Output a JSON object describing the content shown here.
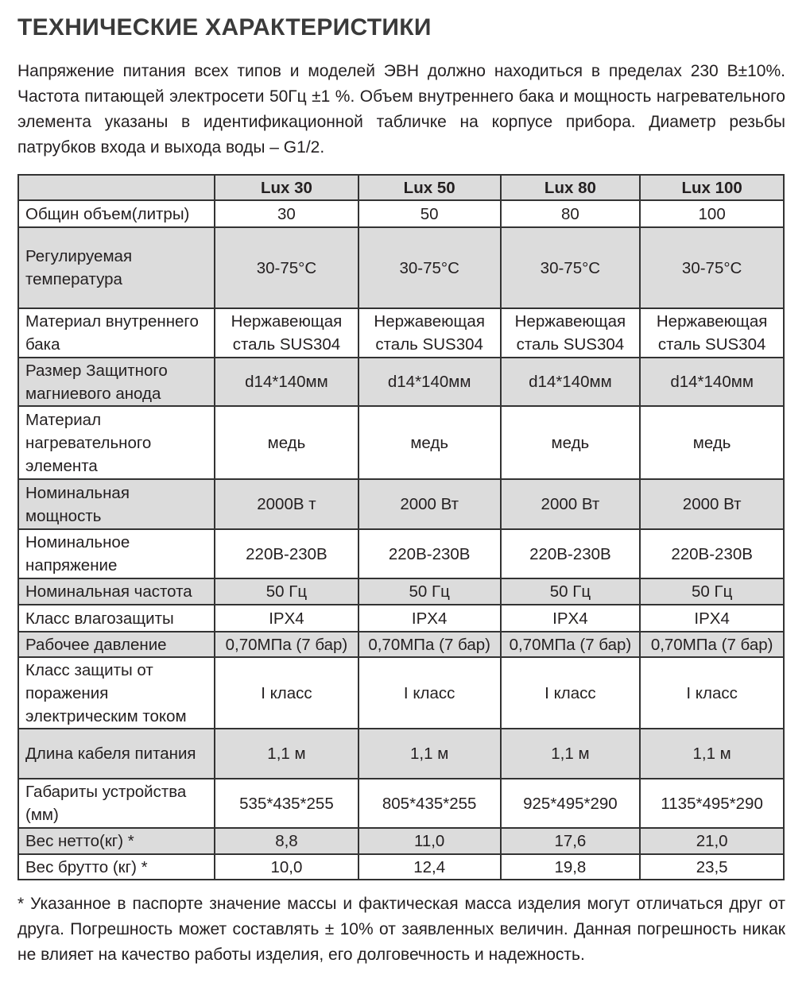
{
  "title": "ТЕХНИЧЕСКИЕ ХАРАКТЕРИСТИКИ",
  "intro": "Напряжение питания всех типов и моделей ЭВН должно находиться в пределах 230 В±10%. Частота питающей электросети 50Гц ±1 %. Объем внутреннего бака и мощность нагревательного элемента указаны в идентификационной табличке на корпусе прибора. Диаметр резьбы патрубков входа и выхода воды – G1/2.",
  "table": {
    "headers": [
      "",
      "Lux 30",
      "Lux 50",
      "Lux 80",
      "Lux 100"
    ],
    "rows": [
      {
        "label": "Общин объем(литры)",
        "values": [
          "30",
          "50",
          "80",
          "100"
        ],
        "h": 34
      },
      {
        "label": "Регулируемая температура",
        "values": [
          "30-75°C",
          "30-75°C",
          "30-75°C",
          "30-75°C"
        ],
        "h": 102
      },
      {
        "label": "Материал внутреннего бака",
        "values": [
          "Нержавеющая сталь SUS304",
          "Нержавеющая сталь SUS304",
          "Нержавеющая сталь SUS304",
          "Нержавеющая сталь SUS304"
        ],
        "h": 62
      },
      {
        "label": "Размер Защитного магниевого анода",
        "values": [
          "d14*140мм",
          "d14*140мм",
          "d14*140мм",
          "d14*140мм"
        ],
        "h": 61
      },
      {
        "label": "Материал нагревательного элемента",
        "values": [
          "медь",
          "медь",
          "медь",
          "медь"
        ],
        "h": 92
      },
      {
        "label": "Номинальная мощность",
        "values": [
          "2000В т",
          "2000 Вт",
          "2000 Вт",
          "2000 Вт"
        ],
        "h": 63
      },
      {
        "label": "Номинальное напряжение",
        "values": [
          "220В-230В",
          "220В-230В",
          "220В-230В",
          "220В-230В"
        ],
        "h": 62
      },
      {
        "label": "Номинальная частота",
        "values": [
          "50 Гц",
          "50 Гц",
          "50 Гц",
          "50 Гц"
        ],
        "h": 33
      },
      {
        "label": "Класс влагозащиты",
        "values": [
          "IPX4",
          "IPX4",
          "IPX4",
          "IPX4"
        ],
        "h": 34
      },
      {
        "label": "Рабочее давление",
        "values": [
          "0,70МПа (7 бар)",
          "0,70МПа (7 бар)",
          "0,70МПа (7 бар)",
          "0,70МПа (7 бар)"
        ],
        "h": 32
      },
      {
        "label": "Класс защиты от поражения электрическим током",
        "values": [
          "I класс",
          "I класс",
          "I класс",
          "I класс"
        ],
        "h": 90
      },
      {
        "label": "Длина кабеля питания",
        "values": [
          "1,1 м",
          "1,1 м",
          "1,1 м",
          "1,1 м"
        ],
        "h": 63
      },
      {
        "label": "Габариты устройства (мм)",
        "values": [
          "535*435*255",
          "805*435*255",
          "925*495*290",
          "1135*495*290"
        ],
        "h": 62
      },
      {
        "label": "Вес нетто(кг) *",
        "values": [
          "8,8",
          "11,0",
          "17,6",
          "21,0"
        ],
        "h": 33
      },
      {
        "label": "Вес брутто (кг) *",
        "values": [
          "10,0",
          "12,4",
          "19,8",
          "23,5"
        ],
        "h": 32
      }
    ]
  },
  "note": "* Указанное в паспорте значение массы и фактическая масса изделия могут отличаться друг от друга. Погрешность может составлять ± 10% от заявленных величин. Данная погрешность никак не влияет на качество работы изделия, его долговечность и надежность."
}
